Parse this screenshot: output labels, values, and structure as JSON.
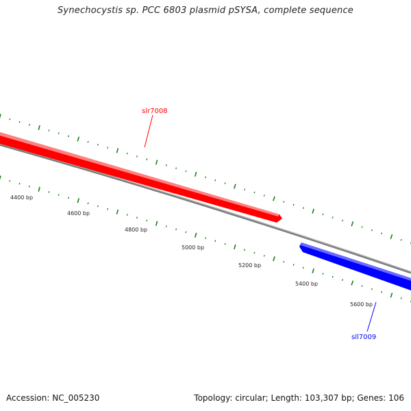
{
  "title": "Synechocystis sp. PCC 6803 plasmid pSYSA, complete sequence",
  "footer": {
    "accession": "Accession: NC_005230",
    "summary": "Topology: circular; Length: 103,307 bp; Genes: 106"
  },
  "genes": [
    {
      "name": "slr7008",
      "strand": "+",
      "color": "#ff0000"
    },
    {
      "name": "sll7009",
      "strand": "-",
      "color": "#0000ff"
    }
  ],
  "scale_labels": [
    "4400 bp",
    "4600 bp",
    "4800 bp",
    "5000 bp",
    "5200 bp",
    "5400 bp",
    "5600 bp"
  ],
  "colors": {
    "backbone": "#808080",
    "tick": "#1a7a1a",
    "forward_gene": "#ff0000",
    "reverse_gene": "#0000ff"
  }
}
